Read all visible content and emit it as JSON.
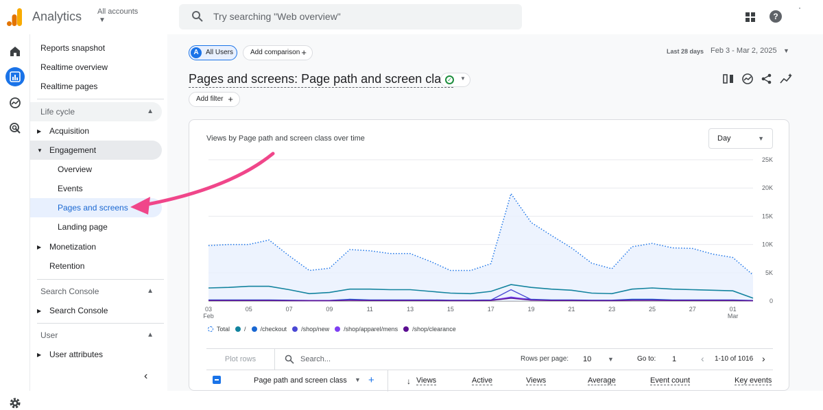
{
  "app": {
    "title": "Analytics",
    "account_label": "All accounts"
  },
  "search": {
    "placeholder": "Try searching \"Web overview\""
  },
  "nav": {
    "top_items": [
      "Reports snapshot",
      "Realtime overview",
      "Realtime pages"
    ],
    "lifecycle": {
      "label": "Life cycle",
      "acquisition": "Acquisition",
      "engagement": "Engagement",
      "engagement_children": [
        "Overview",
        "Events",
        "Pages and screens",
        "Landing page"
      ],
      "monetization": "Monetization",
      "retention": "Retention"
    },
    "search_console": {
      "label": "Search Console",
      "item": "Search Console"
    },
    "user": {
      "label": "User",
      "item": "User attributes"
    }
  },
  "toolbar": {
    "segment_avatar": "A",
    "segment": "All Users",
    "add_comparison": "Add comparison",
    "date_label": "Last 28 days",
    "date_range": "Feb 3 - Mar 2, 2025",
    "add_filter": "Add filter"
  },
  "page": {
    "title": "Pages and screens: Page path and screen class"
  },
  "chart": {
    "title": "Views by Page path and screen class over time",
    "granularity": "Day"
  },
  "chart_data": {
    "type": "line",
    "x": [
      "03 Feb",
      "04",
      "05",
      "06",
      "07",
      "08",
      "09",
      "10",
      "11",
      "12",
      "13",
      "14",
      "15",
      "16",
      "17",
      "18",
      "19",
      "20",
      "21",
      "22",
      "23",
      "24",
      "25",
      "26",
      "27",
      "28",
      "01 Mar",
      "02"
    ],
    "x_tick_labels": [
      {
        "top": "03",
        "bottom": "Feb"
      },
      {
        "top": "05",
        "bottom": ""
      },
      {
        "top": "07",
        "bottom": ""
      },
      {
        "top": "09",
        "bottom": ""
      },
      {
        "top": "11",
        "bottom": ""
      },
      {
        "top": "13",
        "bottom": ""
      },
      {
        "top": "15",
        "bottom": ""
      },
      {
        "top": "17",
        "bottom": ""
      },
      {
        "top": "19",
        "bottom": ""
      },
      {
        "top": "21",
        "bottom": ""
      },
      {
        "top": "23",
        "bottom": ""
      },
      {
        "top": "25",
        "bottom": ""
      },
      {
        "top": "27",
        "bottom": ""
      },
      {
        "top": "01",
        "bottom": "Mar"
      }
    ],
    "y_ticks": [
      "25K",
      "20K",
      "15K",
      "10K",
      "5K",
      "0"
    ],
    "ylim": [
      0,
      25000
    ],
    "grid": true,
    "series": [
      {
        "name": "Total",
        "color": "#1a73e8",
        "style": "dotted-area",
        "values": [
          9800,
          10000,
          10000,
          10800,
          8000,
          5400,
          5800,
          9100,
          8900,
          8400,
          8400,
          7000,
          5400,
          5400,
          6600,
          19000,
          13900,
          11600,
          9400,
          6700,
          5700,
          9600,
          10200,
          9400,
          9300,
          8300,
          7700,
          4600
        ]
      },
      {
        "name": "/",
        "color": "#12839e",
        "style": "line",
        "values": [
          2300,
          2400,
          2600,
          2600,
          2000,
          1300,
          1500,
          2100,
          2100,
          2000,
          2000,
          1700,
          1400,
          1300,
          1700,
          2900,
          2400,
          2100,
          1900,
          1400,
          1300,
          2100,
          2300,
          2100,
          2000,
          1900,
          1800,
          500
        ]
      },
      {
        "name": "/checkout",
        "color": "#1967d2",
        "style": "line",
        "values": [
          200,
          200,
          200,
          200,
          150,
          100,
          100,
          300,
          200,
          200,
          200,
          200,
          150,
          150,
          200,
          600,
          300,
          200,
          200,
          150,
          150,
          300,
          300,
          200,
          200,
          200,
          200,
          100
        ]
      },
      {
        "name": "/shop/new",
        "color": "#4a48d4",
        "style": "line",
        "values": [
          150,
          150,
          150,
          150,
          100,
          100,
          100,
          200,
          150,
          150,
          150,
          150,
          100,
          100,
          150,
          2000,
          250,
          150,
          150,
          100,
          100,
          200,
          200,
          150,
          150,
          150,
          150,
          50
        ]
      },
      {
        "name": "/shop/apparel/mens",
        "color": "#7e3ff2",
        "style": "line",
        "values": [
          100,
          100,
          100,
          100,
          80,
          60,
          60,
          150,
          100,
          100,
          100,
          100,
          80,
          80,
          100,
          700,
          200,
          100,
          100,
          80,
          80,
          150,
          150,
          100,
          100,
          100,
          100,
          50
        ]
      },
      {
        "name": "/shop/clearance",
        "color": "#5b0e91",
        "style": "line",
        "values": [
          80,
          80,
          80,
          80,
          60,
          50,
          50,
          120,
          80,
          80,
          80,
          80,
          60,
          60,
          80,
          500,
          150,
          80,
          80,
          60,
          60,
          120,
          120,
          80,
          80,
          80,
          80,
          40
        ]
      }
    ]
  },
  "table": {
    "plot_rows": "Plot rows",
    "search_placeholder": "Search...",
    "rows_per_page_label": "Rows per page:",
    "rows_per_page": "10",
    "goto_label": "Go to:",
    "goto_value": "1",
    "page_label": "1-10 of 1016",
    "headers": {
      "dimension": "Page path and screen class",
      "views": "Views",
      "active": "Active",
      "views2": "Views",
      "average": "Average",
      "event_count": "Event count",
      "key_events": "Key events"
    }
  },
  "colors": {
    "accent": "#1a73e8",
    "active_nav_bg": "#e8f0fe",
    "arrow": "#f0468a"
  }
}
